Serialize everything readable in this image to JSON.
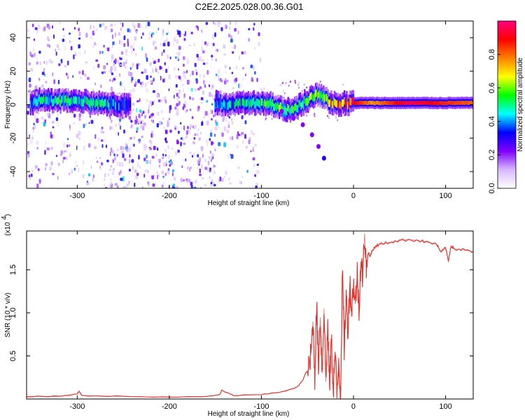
{
  "figure_title": "C2E2.2025.028.00.36.G01",
  "chart_data": [
    {
      "type": "heatmap",
      "xlabel": "Height of straight line (km)",
      "ylabel": "Frequency (Hz)",
      "xlim": [
        -355,
        130
      ],
      "ylim": [
        -50,
        50
      ],
      "xticks": [
        -300,
        -200,
        -100,
        0,
        100
      ],
      "xtick_labels": [
        "-300",
        "-200",
        "-100",
        "0",
        "100"
      ],
      "yticks": [
        -40,
        -20,
        0,
        20,
        40
      ],
      "ytick_labels": [
        "-40",
        "-20",
        "0",
        "20",
        "40"
      ],
      "colorbar": {
        "label": "Normalized spectral amplitude",
        "range": [
          0,
          1
        ],
        "ticks": [
          0.0,
          0.2,
          0.4,
          0.6,
          0.8
        ],
        "tick_labels": [
          "0.0",
          "0.2",
          "0.4",
          "0.6",
          "0.8"
        ],
        "colormap": [
          "#ffffff",
          "#d8b8ff",
          "#7f00ff",
          "#0000ff",
          "#00ffff",
          "#00ff00",
          "#ffff00",
          "#ff8000",
          "#ff0000",
          "#ff0080"
        ]
      },
      "ridge": [
        {
          "x": -352,
          "y": 1,
          "amp": 0.35
        },
        {
          "x": -340,
          "y": 3,
          "amp": 0.45
        },
        {
          "x": -320,
          "y": 2,
          "amp": 0.5
        },
        {
          "x": -300,
          "y": 2,
          "amp": 0.45
        },
        {
          "x": -280,
          "y": 1,
          "amp": 0.5
        },
        {
          "x": -260,
          "y": 0,
          "amp": 0.4
        },
        {
          "x": -245,
          "y": 0,
          "amp": 0.3
        },
        {
          "x": -150,
          "y": 1,
          "amp": 0.35
        },
        {
          "x": -130,
          "y": 0,
          "amp": 0.45
        },
        {
          "x": -110,
          "y": 1,
          "amp": 0.5
        },
        {
          "x": -95,
          "y": 1,
          "amp": 0.5
        },
        {
          "x": -80,
          "y": -2,
          "amp": 0.55
        },
        {
          "x": -70,
          "y": -3,
          "amp": 0.55
        },
        {
          "x": -60,
          "y": -1,
          "amp": 0.55
        },
        {
          "x": -50,
          "y": 3,
          "amp": 0.6
        },
        {
          "x": -40,
          "y": 6,
          "amp": 0.55
        },
        {
          "x": -30,
          "y": 3,
          "amp": 0.6
        },
        {
          "x": -20,
          "y": 0,
          "amp": 0.85
        },
        {
          "x": -10,
          "y": 1,
          "amp": 0.8
        },
        {
          "x": 0,
          "y": 1,
          "amp": 0.9
        },
        {
          "x": 20,
          "y": 1,
          "amp": 0.75
        },
        {
          "x": 40,
          "y": 1,
          "amp": 0.85
        },
        {
          "x": 60,
          "y": 1,
          "amp": 0.95
        },
        {
          "x": 80,
          "y": 1,
          "amp": 0.9
        },
        {
          "x": 100,
          "y": 1,
          "amp": 0.85
        },
        {
          "x": 130,
          "y": 1,
          "amp": 0.8
        }
      ],
      "branch": [
        {
          "x": -78,
          "y": -4
        },
        {
          "x": -65,
          "y": -8
        },
        {
          "x": -55,
          "y": -12
        },
        {
          "x": -45,
          "y": -18
        },
        {
          "x": -38,
          "y": -25
        },
        {
          "x": -32,
          "y": -32
        }
      ],
      "noise_region": [
        -355,
        -100
      ]
    },
    {
      "type": "line",
      "xlabel": "Height of straight line (km)",
      "ylabel": "SNR (10 * v/v)",
      "y_multiplier_label": "(x10",
      "y_multiplier_exponent": "4",
      "xlim": [
        -355,
        130
      ],
      "ylim": [
        0,
        1.95
      ],
      "xticks": [
        -300,
        -200,
        -100,
        0,
        100
      ],
      "xtick_labels": [
        "-300",
        "-200",
        "-100",
        "0",
        "100"
      ],
      "yticks": [
        0.5,
        1.0,
        1.5
      ],
      "ytick_labels": [
        "0.5",
        "1.0",
        "1.5"
      ],
      "series": [
        {
          "color": "#e8302a",
          "x": [
            -355,
            -320,
            -300,
            -298,
            -295,
            -250,
            -200,
            -160,
            -145,
            -143,
            -130,
            -100,
            -80,
            -65,
            -60,
            -55,
            -52,
            -48,
            -46,
            -44,
            -42,
            -40,
            -38,
            -36,
            -34,
            -32,
            -30,
            -28,
            -26,
            -24,
            -22,
            -20,
            -18,
            -16,
            -14,
            -12,
            -10,
            -8,
            -6,
            -4,
            -2,
            0,
            2,
            4,
            6,
            8,
            10,
            12,
            14,
            16,
            18,
            20,
            25,
            30,
            40,
            50,
            60,
            70,
            80,
            90,
            95,
            100,
            103,
            106,
            110,
            120,
            130
          ],
          "y": [
            0.03,
            0.03,
            0.06,
            0.09,
            0.04,
            0.03,
            0.02,
            0.03,
            0.05,
            0.1,
            0.04,
            0.05,
            0.08,
            0.12,
            0.15,
            0.22,
            0.3,
            0.35,
            0.55,
            0.9,
            0.25,
            1.1,
            0.4,
            0.95,
            0.3,
            1.05,
            0.2,
            0.85,
            0.15,
            0.7,
            0.1,
            0.55,
            0.05,
            0.45,
            0.02,
            1.5,
            0.6,
            1.2,
            0.8,
            1.35,
            1.0,
            1.35,
            1.1,
            1.45,
            1.05,
            1.6,
            1.4,
            1.92,
            1.5,
            1.7,
            1.65,
            1.72,
            1.78,
            1.8,
            1.82,
            1.84,
            1.85,
            1.84,
            1.82,
            1.8,
            1.7,
            1.76,
            1.6,
            1.78,
            1.74,
            1.73,
            1.71
          ]
        }
      ]
    }
  ]
}
